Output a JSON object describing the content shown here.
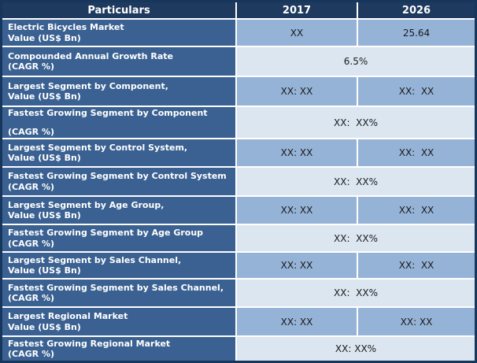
{
  "colors": {
    "header_bg": "#1F3A5F",
    "header_text": "#FFFFFF",
    "label_bg": "#3A6191",
    "label_text": "#FFFFFF",
    "value_bg": "#95B3D7",
    "merged_bg": "#DCE6F1",
    "value_text": "#1A1A1A",
    "grid": "#FFFFFF",
    "outer_border": "#16365C"
  },
  "table": {
    "header": {
      "particulars": "Particulars",
      "col_2017": "2017",
      "col_2026": "2026"
    },
    "rows": [
      {
        "label_line1": "Electric Bicycles Market",
        "label_line2": "Value (US$ Bn)",
        "v2017": "XX",
        "v2026": "25.64"
      },
      {
        "label_line1": "Compounded Annual Growth Rate",
        "label_line2": "(CAGR %)",
        "merged": "6.5%"
      },
      {
        "label_line1": "Largest Segment by Component,",
        "label_line2": "Value (US$ Bn)",
        "v2017": "XX: XX",
        "v2026": "XX:  XX"
      },
      {
        "label_line1": "Fastest Growing Segment by Component",
        "label_line2": "(CAGR %)",
        "merged": "XX:  XX%"
      },
      {
        "label_line1": "Largest Segment by Control System,",
        "label_line2": "Value (US$ Bn)",
        "v2017": "XX: XX",
        "v2026": "XX:  XX"
      },
      {
        "label_line1": "Fastest Growing Segment by Control System",
        "label_line2": "(CAGR %)",
        "merged": "XX:  XX%"
      },
      {
        "label_line1": "Largest Segment by Age Group,",
        "label_line2": "Value (US$ Bn)",
        "v2017": "XX: XX",
        "v2026": "XX:  XX"
      },
      {
        "label_line1": "Fastest Growing Segment by Age Group",
        "label_line2": "(CAGR %)",
        "merged": "XX:  XX%"
      },
      {
        "label_line1": "Largest Segment by Sales Channel,",
        "label_line2": "Value (US$ Bn)",
        "v2017": "XX: XX",
        "v2026": "XX:  XX"
      },
      {
        "label_line1": "Fastest Growing Segment by Sales Channel,",
        "label_line2": "(CAGR %)",
        "merged": "XX:  XX%"
      },
      {
        "label_line1": "Largest Regional Market",
        "label_line2": "Value (US$ Bn)",
        "v2017": "XX: XX",
        "v2026": "XX: XX"
      },
      {
        "label_line1": "Fastest Growing Regional Market",
        "label_line2": "(CAGR %)",
        "merged": "XX: XX%"
      }
    ]
  },
  "chart_data": {
    "type": "table",
    "title": "Electric Bicycles Market summary table",
    "columns": [
      "Particulars",
      "2017",
      "2026"
    ],
    "rows": [
      {
        "particulars": "Electric Bicycles Market Value (US$ Bn)",
        "y2017": "XX",
        "y2026": "25.64"
      },
      {
        "particulars": "Compounded Annual Growth Rate (CAGR %)",
        "merged_2017_2026": "6.5%"
      },
      {
        "particulars": "Largest Segment by Component, Value (US$ Bn)",
        "y2017": "XX: XX",
        "y2026": "XX: XX"
      },
      {
        "particulars": "Fastest Growing Segment by Component (CAGR %)",
        "merged_2017_2026": "XX: XX%"
      },
      {
        "particulars": "Largest Segment by Control System, Value (US$ Bn)",
        "y2017": "XX: XX",
        "y2026": "XX: XX"
      },
      {
        "particulars": "Fastest Growing Segment by Control System (CAGR %)",
        "merged_2017_2026": "XX: XX%"
      },
      {
        "particulars": "Largest Segment by Age Group, Value (US$ Bn)",
        "y2017": "XX: XX",
        "y2026": "XX: XX"
      },
      {
        "particulars": "Fastest Growing Segment by Age Group (CAGR %)",
        "merged_2017_2026": "XX: XX%"
      },
      {
        "particulars": "Largest Segment by Sales Channel, Value (US$ Bn)",
        "y2017": "XX: XX",
        "y2026": "XX: XX"
      },
      {
        "particulars": "Fastest Growing Segment by Sales Channel, (CAGR %)",
        "merged_2017_2026": "XX: XX%"
      },
      {
        "particulars": "Largest Regional Market Value (US$ Bn)",
        "y2017": "XX: XX",
        "y2026": "XX: XX"
      },
      {
        "particulars": "Fastest Growing Regional Market (CAGR %)",
        "merged_2017_2026": "XX: XX%"
      }
    ]
  }
}
